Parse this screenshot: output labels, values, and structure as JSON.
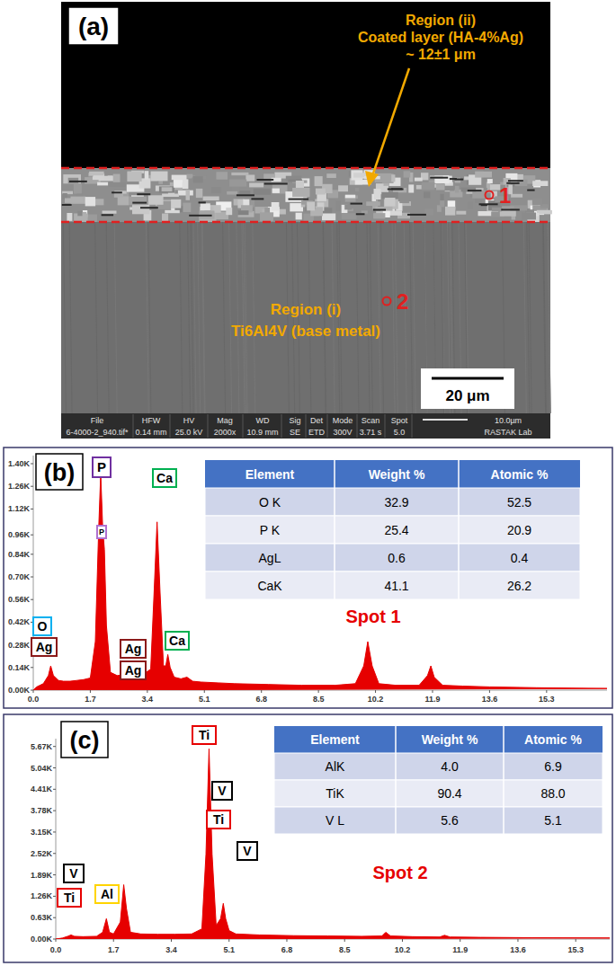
{
  "sem_image": {
    "label": "(a)",
    "region_ii": [
      "Region (ii)",
      "Coated layer (HA-4%Ag)",
      "~ 12±1 μm"
    ],
    "region_i": [
      "Region (i)",
      "Ti6Al4V (base metal)"
    ],
    "spot_labels": [
      "1",
      "2"
    ],
    "scale_bar": "20 μm",
    "info_bar": {
      "headers": [
        "File",
        "HFW",
        "HV",
        "Mag",
        "WD",
        "Sig",
        "Det",
        "Mode",
        "Scan",
        "Spot",
        "10.0µm"
      ],
      "values": [
        "6-4000-2_940.tif*",
        "0.14 mm",
        "25.0 kV",
        "2000x",
        "10.9 mm",
        "SE",
        "ETD",
        "300V",
        "3.71 s",
        "5.0",
        "RASTAK Lab"
      ]
    }
  },
  "chart_data": [
    {
      "type": "area",
      "title": "(b)",
      "color": "#e60000",
      "x": [
        0,
        0.1,
        0.2,
        0.3,
        0.45,
        0.52,
        0.6,
        0.75,
        0.9,
        1.1,
        1.3,
        1.5,
        1.7,
        1.85,
        1.95,
        2.01,
        2.07,
        2.12,
        2.18,
        2.3,
        2.5,
        2.7,
        2.85,
        2.98,
        3.1,
        3.15,
        3.3,
        3.5,
        3.6,
        3.69,
        3.78,
        3.88,
        3.95,
        4.01,
        4.08,
        4.2,
        4.4,
        4.58,
        4.75,
        5.0,
        5.5,
        6.0,
        7.0,
        8.0,
        9.0,
        9.6,
        9.85,
        9.97,
        10.1,
        10.3,
        10.8,
        11.5,
        11.75,
        11.85,
        11.95,
        12.2,
        12.8,
        13.6,
        15.0,
        17.1
      ],
      "values": [
        0,
        20,
        30,
        40,
        90,
        150,
        90,
        60,
        55,
        55,
        60,
        65,
        75,
        300,
        1000,
        1340,
        1000,
        870,
        400,
        110,
        90,
        95,
        110,
        140,
        120,
        115,
        100,
        130,
        600,
        1040,
        600,
        150,
        150,
        220,
        140,
        80,
        70,
        80,
        55,
        50,
        45,
        40,
        35,
        30,
        30,
        40,
        150,
        300,
        150,
        40,
        30,
        30,
        90,
        150,
        80,
        30,
        25,
        20,
        15,
        10
      ],
      "xlim": [
        0,
        17.1
      ],
      "ylim": [
        0,
        1450
      ],
      "xticks": [
        {
          "value": 0,
          "label": "0.0"
        },
        1.7,
        3.4,
        5.1,
        6.8,
        8.5,
        10.2,
        11.9,
        13.6,
        15.3
      ],
      "yticks": [
        {
          "value": 0,
          "label": "0.00K"
        },
        {
          "value": 140,
          "label": "0.14K"
        },
        {
          "value": 280,
          "label": "0.28K"
        },
        {
          "value": 420,
          "label": "0.42K"
        },
        {
          "value": 560,
          "label": "0.56K"
        },
        {
          "value": 700,
          "label": "0.70K"
        },
        {
          "value": 840,
          "label": "0.84K"
        },
        {
          "value": 960,
          "label": "0.96K"
        },
        {
          "value": 1120,
          "label": "1.12K"
        },
        {
          "value": 1260,
          "label": "1.26K"
        },
        {
          "value": 1400,
          "label": "1.40K"
        }
      ],
      "annotations": [
        {
          "text": "P",
          "color": "#7030a0"
        },
        {
          "text": "P",
          "color": "#b070d0"
        },
        {
          "text": "Ca",
          "color": "#00b050"
        },
        {
          "text": "O",
          "color": "#00b0f0"
        },
        {
          "text": "Ag",
          "color": "#8b1a1a"
        },
        {
          "text": "Ag",
          "color": "#8b1a1a"
        },
        {
          "text": "Ag",
          "color": "#8b1a1a"
        },
        {
          "text": "Ca",
          "color": "#00b050"
        },
        {
          "text": "Spot 1",
          "color": "#e60000"
        }
      ],
      "table": {
        "columns": [
          "Element",
          "Weight %",
          "Atomic %"
        ],
        "rows": [
          [
            "O K",
            "32.9",
            "52.5"
          ],
          [
            "P K",
            "25.4",
            "20.9"
          ],
          [
            "AgL",
            "0.6",
            "0.4"
          ],
          [
            "CaK",
            "41.1",
            "26.2"
          ]
        ]
      }
    },
    {
      "type": "area",
      "title": "(c)",
      "color": "#e60000",
      "x": [
        0,
        0.2,
        0.35,
        0.45,
        0.55,
        0.8,
        1.2,
        1.38,
        1.49,
        1.58,
        1.7,
        1.9,
        2.0,
        2.08,
        2.2,
        2.5,
        3.0,
        3.5,
        4.0,
        4.3,
        4.42,
        4.51,
        4.6,
        4.72,
        4.85,
        4.93,
        5.0,
        5.1,
        5.3,
        6.0,
        7.0,
        8.0,
        9.0,
        9.6,
        9.71,
        9.85,
        10.5,
        11.3,
        11.44,
        11.6,
        12.5,
        14.0,
        16.3
      ],
      "values": [
        0,
        30,
        80,
        120,
        80,
        70,
        80,
        200,
        600,
        200,
        150,
        500,
        1600,
        900,
        200,
        150,
        140,
        140,
        150,
        300,
        2500,
        5600,
        2500,
        400,
        600,
        1050,
        600,
        250,
        150,
        120,
        100,
        90,
        80,
        90,
        200,
        90,
        70,
        60,
        110,
        60,
        50,
        40,
        30
      ],
      "xlim": [
        0,
        16.3
      ],
      "ylim": [
        0,
        5900
      ],
      "xticks": [
        {
          "value": 0,
          "label": "0.0"
        },
        1.7,
        3.4,
        5.1,
        6.8,
        8.5,
        10.2,
        11.9,
        13.6,
        15.3
      ],
      "yticks": [
        {
          "value": 0,
          "label": "0.00K"
        },
        {
          "value": 630,
          "label": "0.63K"
        },
        {
          "value": 1260,
          "label": "1.26K"
        },
        {
          "value": 1890,
          "label": "1.89K"
        },
        {
          "value": 2520,
          "label": "2.52K"
        },
        {
          "value": 3150,
          "label": "3.15K"
        },
        {
          "value": 3780,
          "label": "3.78K"
        },
        {
          "value": 4410,
          "label": "4.41K"
        },
        {
          "value": 5040,
          "label": "5.04K"
        },
        {
          "value": 5670,
          "label": "5.67K"
        }
      ],
      "annotations": [
        {
          "text": "Ti",
          "color": "#e60000"
        },
        {
          "text": "V",
          "color": "#000000"
        },
        {
          "text": "Ti",
          "color": "#e60000"
        },
        {
          "text": "V",
          "color": "#000000"
        },
        {
          "text": "V",
          "color": "#000000"
        },
        {
          "text": "Al",
          "color": "#ffd400"
        },
        {
          "text": "Ti",
          "color": "#e60000"
        },
        {
          "text": "Spot 2",
          "color": "#e60000"
        }
      ],
      "table": {
        "columns": [
          "Element",
          "Weight %",
          "Atomic %"
        ],
        "rows": [
          [
            "AlK",
            "4.0",
            "6.9"
          ],
          [
            "TiK",
            "90.4",
            "88.0"
          ],
          [
            "V L",
            "5.6",
            "5.1"
          ]
        ]
      }
    }
  ]
}
